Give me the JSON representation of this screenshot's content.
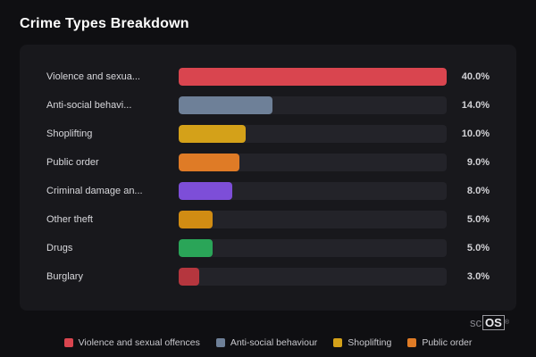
{
  "title": "Crime Types Breakdown",
  "logo": {
    "prefix": "sc",
    "suffix": "OS",
    "reg": "®"
  },
  "chart_data": {
    "type": "bar",
    "orientation": "horizontal",
    "title": "Crime Types Breakdown",
    "max_value": 40,
    "grid": false,
    "legend_position": "bottom",
    "categories": [
      "Violence and sexua...",
      "Anti-social behavi...",
      "Shoplifting",
      "Public order",
      "Criminal damage an...",
      "Other theft",
      "Drugs",
      "Burglary"
    ],
    "values": [
      40.0,
      14.0,
      10.0,
      9.0,
      8.0,
      5.0,
      5.0,
      3.0
    ],
    "value_labels": [
      "40.0%",
      "14.0%",
      "10.0%",
      "9.0%",
      "8.0%",
      "5.0%",
      "5.0%",
      "3.0%"
    ],
    "colors": [
      "#d9454f",
      "#6e8098",
      "#d4a119",
      "#df7b26",
      "#7d4ed8",
      "#d18c13",
      "#2aa558",
      "#b5363e"
    ],
    "track_color": "#232329",
    "legend": [
      {
        "label": "Violence and sexual offences",
        "color": "#d9454f"
      },
      {
        "label": "Anti-social behaviour",
        "color": "#6e8098"
      },
      {
        "label": "Shoplifting",
        "color": "#d4a119"
      },
      {
        "label": "Public order",
        "color": "#df7b26"
      }
    ]
  }
}
